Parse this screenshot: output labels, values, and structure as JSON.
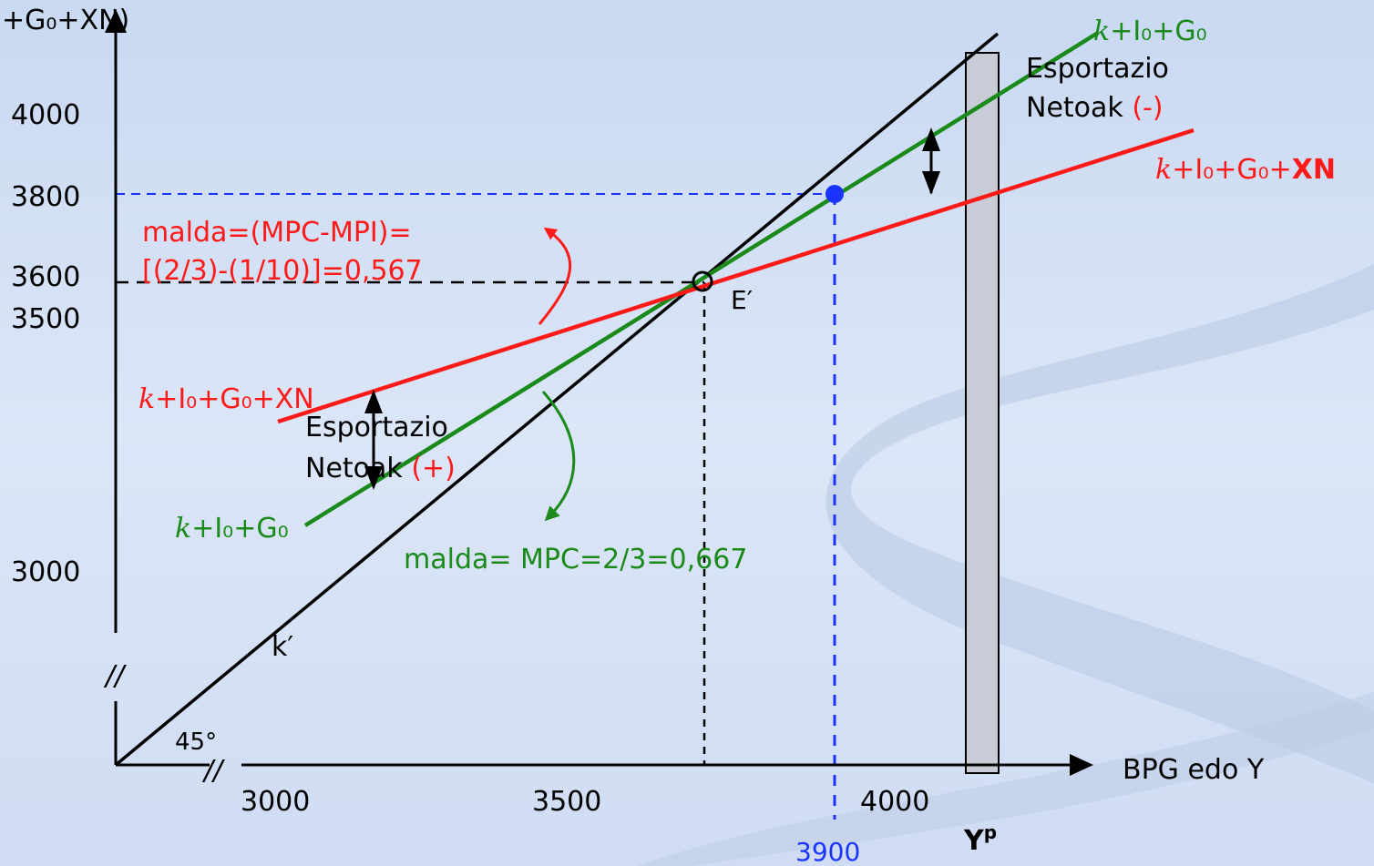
{
  "colors": {
    "background": "#d6e2f5",
    "axis": "#000000",
    "line_45": "#000000",
    "line_green": "#1a8a1a",
    "line_red": "#ff1a1a",
    "guide_black": "#000000",
    "guide_blue": "#1a33ff",
    "point_blue": "#1a33ff",
    "band_fill": "#c8ccd6"
  },
  "axes": {
    "y_title": "+G₀+XN)",
    "x_title": "BPG edo Y",
    "break_mark": "//",
    "angle_label": "45°",
    "y_ticks": [
      "4000",
      "3800",
      "3600",
      "3500",
      "3000"
    ],
    "x_ticks": [
      "3000",
      "3500",
      "4000"
    ],
    "x_blue_tick": "3900",
    "potential_output": {
      "main": "Y",
      "sup": "p"
    }
  },
  "lines": {
    "line_45_label": "k′",
    "green_top": {
      "k": "k",
      "rest": "+I₀+G₀"
    },
    "green_bottom": {
      "k": "k",
      "rest": "+I₀+G₀"
    },
    "red_right": {
      "k": "k",
      "rest": "+I₀+G₀+",
      "bold": "XN"
    },
    "red_left": {
      "k": "k",
      "rest": "+I₀+G₀+XN"
    }
  },
  "points": {
    "equilibrium_label": "E′"
  },
  "annotations": {
    "slope_red_line1": "malda=(MPC-MPI)=",
    "slope_red_line2": "[(2/3)-(1/10)]=0,567",
    "slope_green": "malda= MPC=2/3=0,667",
    "exports_right_line1": "Esportazio",
    "exports_right_line2": "Netoak",
    "exports_right_sign": "(-)",
    "exports_left_line1": "Esportazio",
    "exports_left_line2": "Netoak",
    "exports_left_sign": "(+)"
  }
}
